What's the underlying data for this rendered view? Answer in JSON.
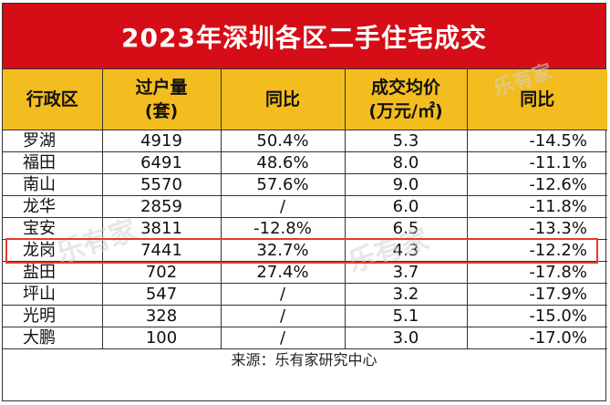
{
  "title": "2023年深圳各区二手住宅成交",
  "headers": [
    {
      "line1": "行政区",
      "line2": ""
    },
    {
      "line1": "过户量",
      "line2": "(套)"
    },
    {
      "line1": "同比",
      "line2": ""
    },
    {
      "line1": "成交均价",
      "line2": "(万元/㎡)"
    },
    {
      "line1": "同比",
      "line2": ""
    }
  ],
  "rows": [
    {
      "district": "罗湖",
      "transfers": "4919",
      "transfers_yoy": "50.4%",
      "avg_price": "5.3",
      "price_yoy": "-14.5%"
    },
    {
      "district": "福田",
      "transfers": "6491",
      "transfers_yoy": "48.6%",
      "avg_price": "8.0",
      "price_yoy": "-11.1%"
    },
    {
      "district": "南山",
      "transfers": "5570",
      "transfers_yoy": "57.6%",
      "avg_price": "9.0",
      "price_yoy": "-12.6%"
    },
    {
      "district": "龙华",
      "transfers": "2859",
      "transfers_yoy": "/",
      "avg_price": "6.0",
      "price_yoy": "-11.8%"
    },
    {
      "district": "宝安",
      "transfers": "3811",
      "transfers_yoy": "-12.8%",
      "avg_price": "6.5",
      "price_yoy": "-13.3%"
    },
    {
      "district": "龙岗",
      "transfers": "7441",
      "transfers_yoy": "32.7%",
      "avg_price": "4.3",
      "price_yoy": "-12.2%"
    },
    {
      "district": "盐田",
      "transfers": "702",
      "transfers_yoy": "27.4%",
      "avg_price": "3.7",
      "price_yoy": "-17.8%"
    },
    {
      "district": "坪山",
      "transfers": "547",
      "transfers_yoy": "/",
      "avg_price": "3.2",
      "price_yoy": "-17.9%"
    },
    {
      "district": "光明",
      "transfers": "328",
      "transfers_yoy": "/",
      "avg_price": "5.1",
      "price_yoy": "-15.0%"
    },
    {
      "district": "大鹏",
      "transfers": "100",
      "transfers_yoy": "/",
      "avg_price": "3.0",
      "price_yoy": "-17.0%"
    }
  ],
  "highlighted_district": "龙岗",
  "source": "来源：乐有家研究中心",
  "watermarks": [
    "乐有家",
    "乐有家",
    "乐有家"
  ],
  "colors": {
    "title_bg": "#d50d16",
    "header_bg": "#f4bd1f",
    "highlight": "#e83a2e"
  }
}
